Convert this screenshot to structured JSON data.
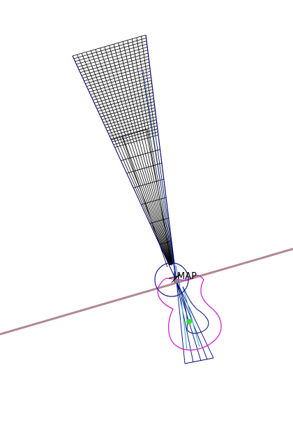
{
  "labels": {
    "marker": "MAP"
  },
  "colors": {
    "background": "#ffffff",
    "grid": "#000000",
    "beam_edge": "#000080",
    "beam_lines": "#1f4fd6",
    "cyan_lines": "#20b8c8",
    "horizon": "#b08890",
    "contour": "#cc22cc",
    "dark_loop": "#2a2a7a",
    "circle": "#1a1a8a",
    "point": "#33dd33"
  },
  "icons": {
    "target_point": "green-dot-icon",
    "marker_crosshair": "crosshair-icon"
  }
}
